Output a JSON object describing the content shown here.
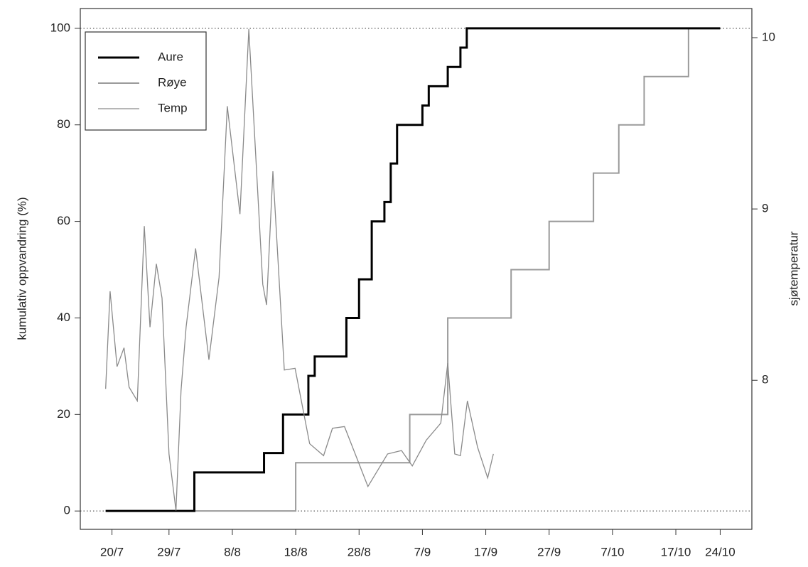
{
  "chart_data": {
    "type": "line",
    "y_label": "kumulativ oppvandring (%)",
    "y2_label": "sjøtemperatur",
    "xlim": [
      196,
      302
    ],
    "xticks": [
      {
        "value": 201,
        "label": "20/7"
      },
      {
        "value": 210,
        "label": "29/7"
      },
      {
        "value": 220,
        "label": "8/8"
      },
      {
        "value": 230,
        "label": "18/8"
      },
      {
        "value": 240,
        "label": "28/8"
      },
      {
        "value": 250,
        "label": "7/9"
      },
      {
        "value": 260,
        "label": "17/9"
      },
      {
        "value": 270,
        "label": "27/9"
      },
      {
        "value": 280,
        "label": "7/10"
      },
      {
        "value": 290,
        "label": "17/10"
      },
      {
        "value": 297,
        "label": "24/10"
      }
    ],
    "ylim": [
      -3.8,
      104.1
    ],
    "yticks": [
      0,
      20,
      40,
      60,
      80,
      100
    ],
    "y2lim": [
      7.13,
      10.17
    ],
    "y2ticks": [
      8,
      9,
      10
    ],
    "hlines": [
      0,
      100
    ],
    "legend": "top-left",
    "series": [
      {
        "name": "Aure",
        "color": "#000000",
        "line_width": 3,
        "drawstyle": "steps-post",
        "x": [
          200,
          214,
          225,
          228,
          232,
          233,
          238,
          240,
          242,
          244,
          245,
          246,
          250,
          251,
          254,
          256,
          257,
          297
        ],
        "values": [
          0,
          8,
          12,
          20,
          28,
          32,
          40,
          48,
          60,
          64,
          72,
          80,
          84,
          88,
          92,
          96,
          100,
          100
        ]
      },
      {
        "name": "Røye",
        "color": "#9a9a9a",
        "line_width": 2,
        "drawstyle": "steps-post",
        "x": [
          200,
          230,
          248,
          254,
          264,
          270,
          277,
          281,
          285,
          292
        ],
        "values": [
          0,
          10,
          20,
          40,
          50,
          60,
          70,
          80,
          90,
          100
        ]
      },
      {
        "name": "Temp",
        "color": "#8a8a8a",
        "line_width": 1.3,
        "axis": "y2",
        "x": [
          200.0,
          200.7,
          201.8,
          202.9,
          203.7,
          205.0,
          206.1,
          207.0,
          208.0,
          208.9,
          210.0,
          211.1,
          211.9,
          212.7,
          214.2,
          216.3,
          217.9,
          219.2,
          221.2,
          222.6,
          224.8,
          225.4,
          226.4,
          228.2,
          229.9,
          232.2,
          234.4,
          235.8,
          237.7,
          241.4,
          244.5,
          246.7,
          248.4,
          250.6,
          252.9,
          254.0,
          255.1,
          256.0,
          257.1,
          258.7,
          260.3,
          261.2
        ],
        "values": [
          7.95,
          8.52,
          8.08,
          8.19,
          7.96,
          7.88,
          8.9,
          8.31,
          8.68,
          8.48,
          7.57,
          7.24,
          7.94,
          8.31,
          8.77,
          8.12,
          8.6,
          9.6,
          8.97,
          10.05,
          8.56,
          8.44,
          9.22,
          8.06,
          8.07,
          7.63,
          7.56,
          7.72,
          7.73,
          7.38,
          7.57,
          7.59,
          7.5,
          7.65,
          7.75,
          8.1,
          7.57,
          7.56,
          7.88,
          7.61,
          7.43,
          7.57
        ]
      }
    ]
  }
}
